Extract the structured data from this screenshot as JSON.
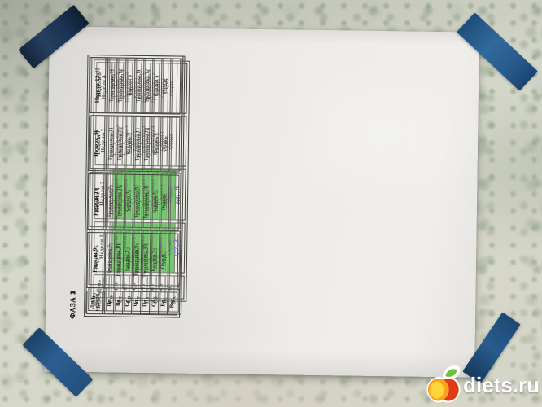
{
  "watermark": {
    "text": "diets.ru",
    "icon": "apple-logo"
  },
  "colors": {
    "highlight_green": "#4ec33f",
    "handwriting_ink": "#4040bd",
    "tape_blue": "#2a5c90",
    "paper": "#efedea",
    "wall": "#d6d8cb"
  },
  "phases": [
    {
      "label": "ФАЗА 1",
      "day_header": "День недели",
      "days": [
        "Пн",
        "Вт",
        "Ср",
        "Чт",
        "Пт",
        "Сб",
        "Вс",
        "Вес"
      ],
      "weeks": [
        {
          "label": "Неделя 1",
          "highlight": true,
          "cells": [
            "Тренировка 1",
            "Тренировка 2",
            "Кардио 1",
            "Тренировка 1",
            "Тренировка 2",
            "Кардио 1",
            "Отдых"
          ],
          "weight": "67,2"
        },
        {
          "label": "Неделя 2",
          "highlight": true,
          "cells": [
            "Тренировка 1",
            "Тренировка 2",
            "Кардио 1",
            "Тренировка 1",
            "Тренировка 2",
            "Кардио 1",
            "Отдых"
          ],
          "weight": "66,8"
        },
        {
          "label": "Неделя 3",
          "highlight": false,
          "cells": [
            "Тренировка 3",
            "Тренировка 4",
            "Кардио 1",
            "Тренировка 3",
            "Тренировка 4",
            "Кардио 1",
            "Отдых"
          ],
          "weight": ""
        },
        {
          "label": "Неделя 4",
          "highlight": false,
          "cells": [
            "Тренировка 3",
            "Тренировка 4",
            "Кардио 1",
            "Тренировка 3",
            "Тренировка 4",
            "Кардио 1",
            "Отдых"
          ],
          "weight": ""
        }
      ]
    },
    {
      "label": "ФАЗА 2",
      "day_header": "День недели",
      "days": [
        "Пн",
        "Вт",
        "Ср",
        "Чт",
        "Пт",
        "Сб",
        "Вс",
        "Вес"
      ],
      "weeks": [
        {
          "label": "Неделя 5",
          "highlight": false,
          "cells": [
            "Тренировка 5",
            "Тренировка 6",
            "Кардио 2",
            "Тренировка 5",
            "Тренировка 6",
            "Кардио 2",
            "Отдых"
          ],
          "weight": ""
        },
        {
          "label": "Неделя 6",
          "highlight": false,
          "cells": [
            "Тренировка 5",
            "Тренировка 6",
            "Кардио 2",
            "Тренировка 5",
            "Тренировка 6",
            "Кардио 2",
            "Отдых"
          ],
          "weight": ""
        },
        {
          "label": "Неделя 7",
          "highlight": false,
          "cells": [
            "Тренировка 7",
            "Тренировка 8",
            "Кардио 2",
            "Тренировка 7",
            "Тренировка 8",
            "Кардио 2",
            "Отдых"
          ],
          "weight": ""
        },
        {
          "label": "Неделя 8",
          "highlight": false,
          "cells": [
            "Тренировка 7",
            "Тренировка 8",
            "Кардио 2",
            "Тренировка 7",
            "Тренировка 8",
            "Кардио 2",
            "Отдых"
          ],
          "weight": ""
        }
      ]
    },
    {
      "label": "ФАЗА 3",
      "day_header": "День недели",
      "days": [
        "Пн",
        "Вт",
        "Ср",
        "Чт",
        "Пт",
        "Сб",
        "Вс",
        "Вес"
      ],
      "weeks": [
        {
          "label": "Неделя 9",
          "highlight": false,
          "cells": [
            "Тренировка 9",
            "Тренировка 10",
            "Кардио 3",
            "Тренировка 9",
            "Тренировка 10",
            "Кардио 3",
            "Отдых"
          ],
          "weight": ""
        },
        {
          "label": "Неделя 10",
          "highlight": false,
          "cells": [
            "Тренировка 9",
            "Тренировка 10",
            "Кардио 3",
            "Тренировка 9",
            "Тренировка 10",
            "Кардио 3",
            "Отдых"
          ],
          "weight": ""
        },
        {
          "label": "Неделя 11",
          "highlight": false,
          "cells": [
            "Тренировка 11",
            "Тренировка 12",
            "Кардио 3",
            "Тренировка 11",
            "Тренировка 12",
            "Кардио 3",
            "Отдых"
          ],
          "weight": ""
        },
        {
          "label": "Неделя 12-13",
          "highlight": false,
          "cells": [
            "Тренировка 11",
            "Тренировка 12",
            "Кардио 3",
            "Тренировка 11",
            "Тренировка 12",
            "Кардио 3",
            "Отдых"
          ],
          "weight": ""
        }
      ]
    }
  ]
}
